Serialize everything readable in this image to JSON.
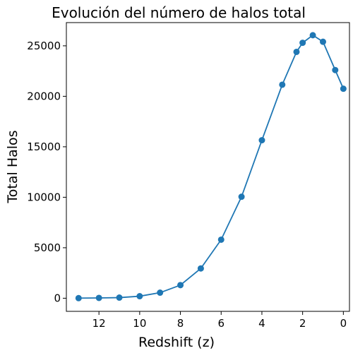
{
  "chart_data": {
    "type": "line",
    "title": "Evolución del número de halos total",
    "xlabel": "Redshift (z)",
    "ylabel": "Total Halos",
    "x_inverted": true,
    "xlim": [
      13.6,
      -0.3
    ],
    "ylim": [
      -1300,
      27300
    ],
    "x_ticks": [
      12,
      10,
      8,
      6,
      4,
      2,
      0
    ],
    "y_ticks": [
      0,
      5000,
      10000,
      15000,
      20000,
      25000
    ],
    "grid": false,
    "markers": true,
    "series": [
      {
        "color": "#1f77b4",
        "x": [
          13.0,
          12.0,
          11.0,
          10.0,
          9.0,
          8.0,
          7.0,
          6.0,
          5.0,
          4.0,
          3.0,
          2.3,
          2.0,
          1.5,
          1.0,
          0.4,
          0.0
        ],
        "y": [
          10,
          30,
          60,
          200,
          550,
          1300,
          2950,
          5800,
          10050,
          15650,
          21150,
          24400,
          25300,
          26050,
          25400,
          22600,
          20750
        ]
      }
    ]
  }
}
